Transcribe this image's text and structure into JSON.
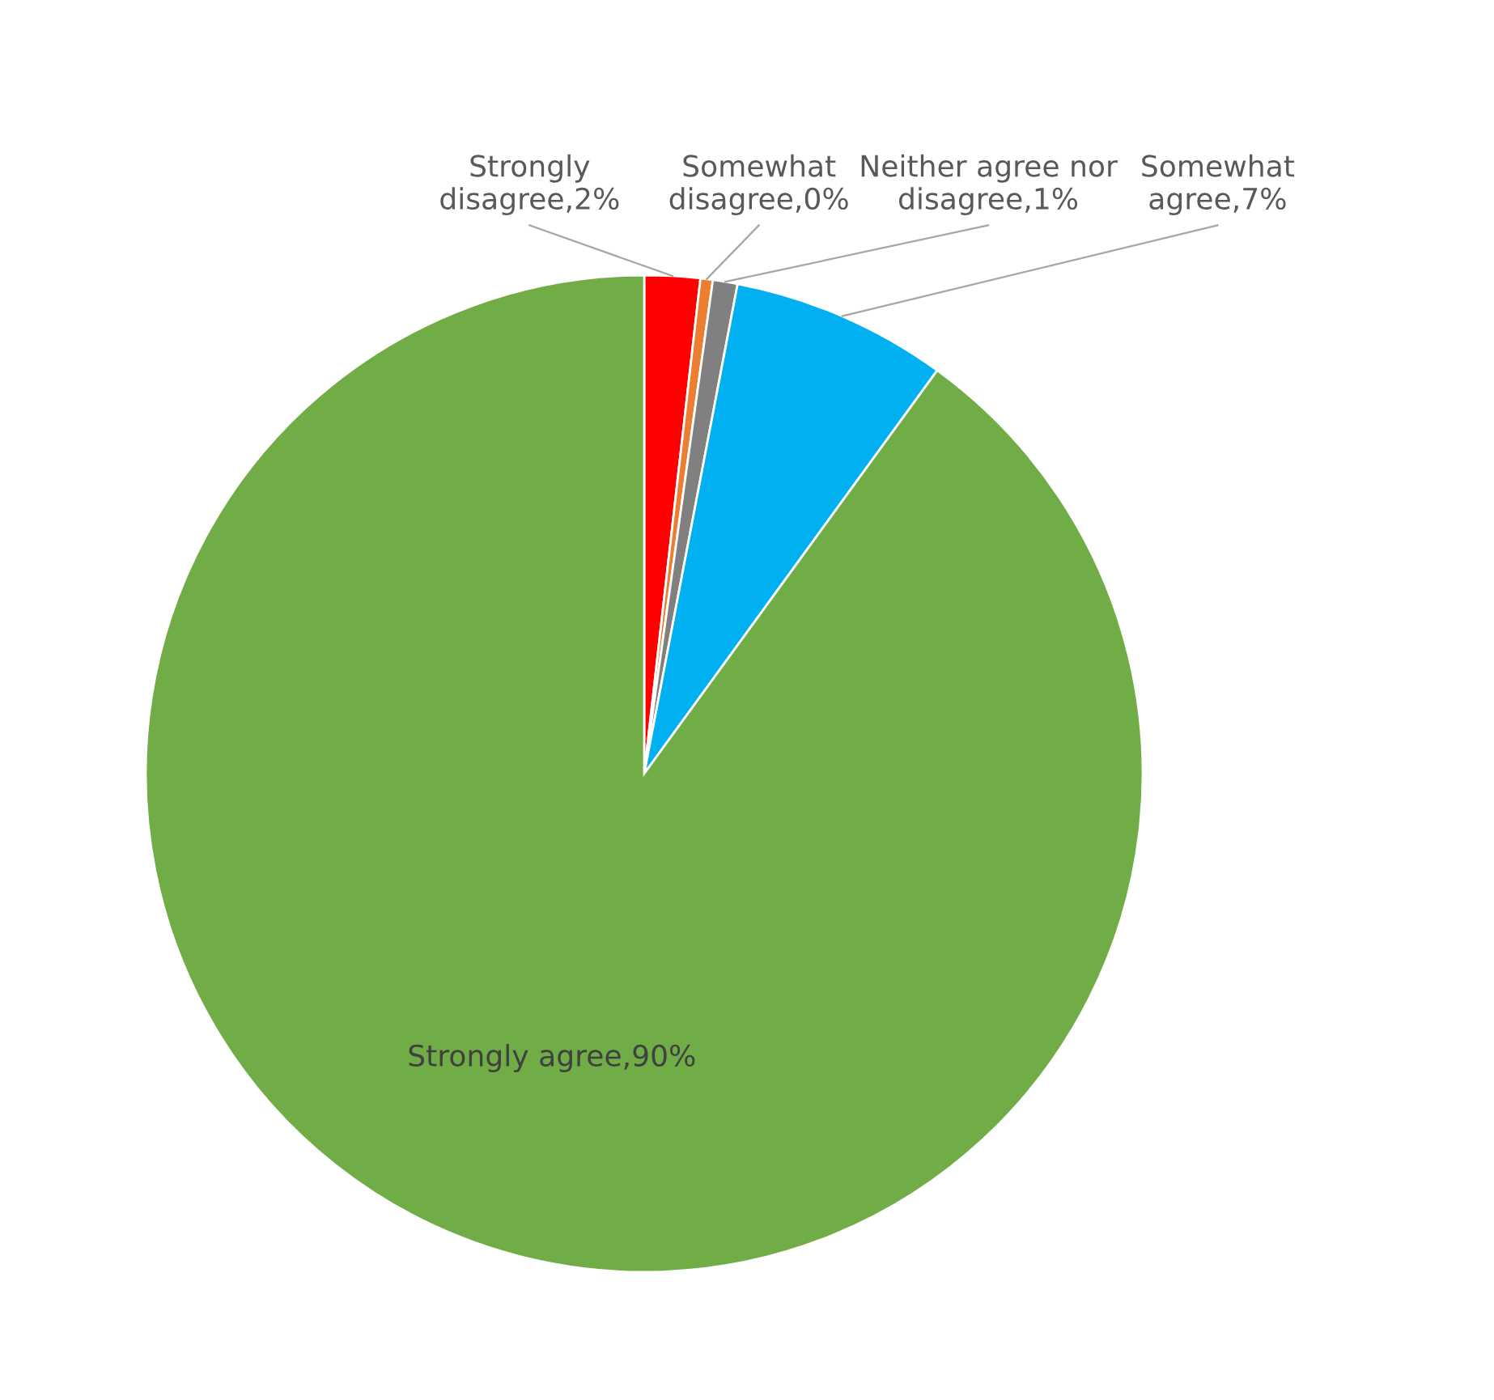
{
  "chart_data": {
    "type": "pie",
    "categories": [
      "Strongly disagree",
      "Somewhat disagree",
      "Neither agree nor disagree",
      "Somewhat agree",
      "Strongly agree"
    ],
    "values": [
      1.8,
      0.4,
      0.8,
      7.0,
      90.0
    ],
    "value_labels": [
      "2%",
      "0%",
      "1%",
      "7%",
      "90%"
    ],
    "colors": [
      "#ff0000",
      "#ed7d31",
      "#808080",
      "#00b0f0",
      "#70ad47"
    ],
    "legend": false
  }
}
